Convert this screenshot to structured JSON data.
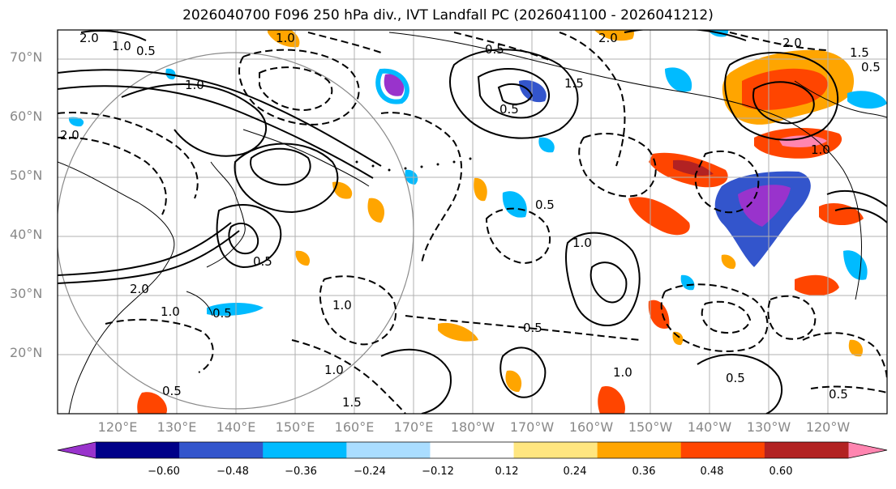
{
  "title": "2026040700 F096 250 hPa div., IVT Landfall PC (2026041100 - 2026041212)",
  "map": {
    "region": "North Pacific",
    "lat_labels": [
      "70°N",
      "60°N",
      "50°N",
      "40°N",
      "30°N",
      "20°N"
    ],
    "lon_labels": [
      "120°E",
      "130°E",
      "140°E",
      "150°E",
      "160°E",
      "170°E",
      "180°W",
      "170°W",
      "160°W",
      "150°W",
      "140°W",
      "130°W",
      "120°W"
    ],
    "contour_labels": [
      "2.0",
      "1.0",
      "0.5",
      "1.0",
      "2.0",
      "1.0",
      "0.5",
      "1.5",
      "0.5",
      "2.0",
      "2.0",
      "1.5",
      "0.5",
      "1.0",
      "0.5",
      "1.0",
      "1.0",
      "1.0",
      "0.5",
      "0.5",
      "1.5",
      "1.0",
      "0.5",
      "0.5",
      "0.5",
      "2.0",
      "1.0",
      "0.5"
    ]
  },
  "colorbar": {
    "colors": [
      "#9933cc",
      "#000088",
      "#3355cc",
      "#00bbff",
      "#aaddff",
      "#ffffff",
      "#ffe680",
      "#ffa500",
      "#ff4500",
      "#b22222",
      "#ff85b0"
    ],
    "tick_labels": [
      "−0.60",
      "−0.48",
      "−0.36",
      "−0.24",
      "−0.12",
      "0.12",
      "0.24",
      "0.36",
      "0.48",
      "0.60"
    ]
  }
}
